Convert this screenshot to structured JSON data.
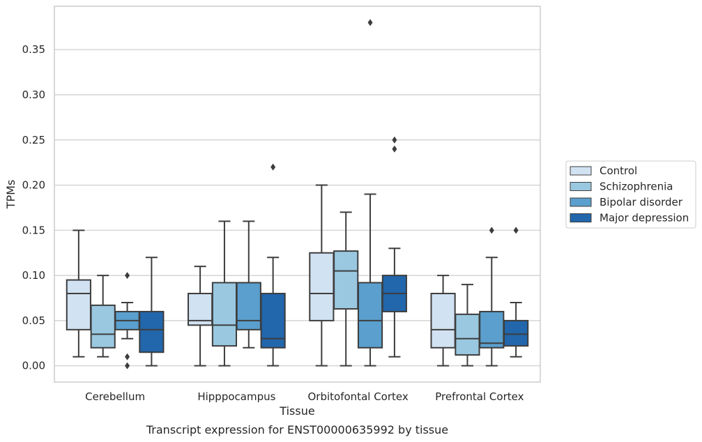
{
  "caption": "Transcript expression for ENST00000635992 by tissue",
  "chart_data": {
    "type": "box",
    "xlabel": "Tissue",
    "ylabel": "TPMs",
    "ylim": [
      -0.018,
      0.398
    ],
    "yticks": [
      0.0,
      0.05,
      0.1,
      0.15,
      0.2,
      0.25,
      0.3,
      0.35
    ],
    "ytick_labels": [
      "0.00",
      "0.05",
      "0.10",
      "0.15",
      "0.20",
      "0.25",
      "0.30",
      "0.35"
    ],
    "grid": "horizontal",
    "legend_placement": "right",
    "categories": [
      "Cerebellum",
      "Hipppocampus",
      "Orbitofontal Cortex",
      "Prefrontal Cortex"
    ],
    "series": [
      {
        "name": "Control",
        "color": "#d1e2f2",
        "boxes": [
          {
            "whislo": 0.01,
            "q1": 0.04,
            "med": 0.08,
            "q3": 0.095,
            "whishi": 0.15,
            "fliers": []
          },
          {
            "whislo": 0.0,
            "q1": 0.045,
            "med": 0.05,
            "q3": 0.08,
            "whishi": 0.11,
            "fliers": []
          },
          {
            "whislo": 0.0,
            "q1": 0.05,
            "med": 0.08,
            "q3": 0.125,
            "whishi": 0.2,
            "fliers": []
          },
          {
            "whislo": 0.0,
            "q1": 0.02,
            "med": 0.04,
            "q3": 0.08,
            "whishi": 0.1,
            "fliers": []
          }
        ]
      },
      {
        "name": "Schizophrenia",
        "color": "#9ac8e0",
        "boxes": [
          {
            "whislo": 0.01,
            "q1": 0.02,
            "med": 0.035,
            "q3": 0.067,
            "whishi": 0.1,
            "fliers": []
          },
          {
            "whislo": 0.0,
            "q1": 0.022,
            "med": 0.045,
            "q3": 0.092,
            "whishi": 0.16,
            "fliers": []
          },
          {
            "whislo": 0.0,
            "q1": 0.063,
            "med": 0.105,
            "q3": 0.127,
            "whishi": 0.17,
            "fliers": []
          },
          {
            "whislo": 0.0,
            "q1": 0.012,
            "med": 0.03,
            "q3": 0.057,
            "whishi": 0.09,
            "fliers": []
          }
        ]
      },
      {
        "name": "Bipolar disorder",
        "color": "#5a9fcd",
        "boxes": [
          {
            "whislo": 0.03,
            "q1": 0.04,
            "med": 0.05,
            "q3": 0.06,
            "whishi": 0.07,
            "fliers": [
              0.1,
              0.01,
              0.0
            ]
          },
          {
            "whislo": 0.02,
            "q1": 0.04,
            "med": 0.05,
            "q3": 0.092,
            "whishi": 0.16,
            "fliers": []
          },
          {
            "whislo": 0.0,
            "q1": 0.02,
            "med": 0.05,
            "q3": 0.092,
            "whishi": 0.19,
            "fliers": [
              0.38
            ]
          },
          {
            "whislo": 0.0,
            "q1": 0.02,
            "med": 0.025,
            "q3": 0.06,
            "whishi": 0.12,
            "fliers": [
              0.15
            ]
          }
        ]
      },
      {
        "name": "Major depression",
        "color": "#2266ac",
        "boxes": [
          {
            "whislo": 0.0,
            "q1": 0.015,
            "med": 0.04,
            "q3": 0.06,
            "whishi": 0.12,
            "fliers": []
          },
          {
            "whislo": 0.0,
            "q1": 0.02,
            "med": 0.03,
            "q3": 0.08,
            "whishi": 0.12,
            "fliers": [
              0.22
            ]
          },
          {
            "whislo": 0.01,
            "q1": 0.06,
            "med": 0.08,
            "q3": 0.1,
            "whishi": 0.13,
            "fliers": [
              0.25,
              0.24
            ]
          },
          {
            "whislo": 0.01,
            "q1": 0.022,
            "med": 0.035,
            "q3": 0.05,
            "whishi": 0.07,
            "fliers": [
              0.15
            ]
          }
        ]
      }
    ]
  }
}
